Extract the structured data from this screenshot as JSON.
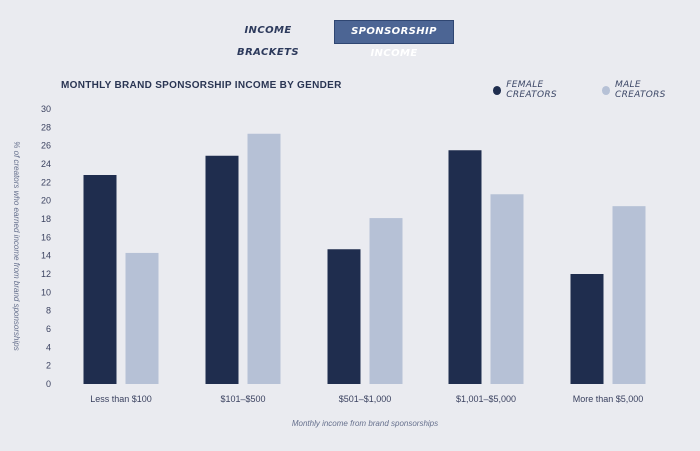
{
  "tabs": [
    {
      "label": "INCOME BRACKETS",
      "active": false
    },
    {
      "label": "SPONSORSHIP INCOME",
      "active": true
    }
  ],
  "colors": {
    "female": "#1f2d4e",
    "male": "#b6c1d6",
    "active_tab": "#4c6594"
  },
  "chart_data": {
    "type": "bar",
    "title": "MONTHLY BRAND SPONSORSHIP INCOME BY GENDER",
    "xlabel": "Monthly income from brand sponsorships",
    "ylabel": "% of creators who earned income from brand sponsorships",
    "ylim": [
      0,
      30
    ],
    "yticks": [
      0,
      2,
      4,
      6,
      8,
      10,
      12,
      14,
      16,
      18,
      20,
      22,
      24,
      26,
      28,
      30
    ],
    "grid": false,
    "legend_position": "top-right",
    "categories": [
      "Less than $100",
      "$101–$500",
      "$501–$1,000",
      "$1,001–$5,000",
      "More than $5,000"
    ],
    "series": [
      {
        "name": "FEMALE CREATORS",
        "values": [
          22.8,
          24.9,
          14.7,
          25.5,
          12.0
        ]
      },
      {
        "name": "MALE CREATORS",
        "values": [
          14.3,
          27.3,
          18.1,
          20.7,
          19.4
        ]
      }
    ]
  }
}
